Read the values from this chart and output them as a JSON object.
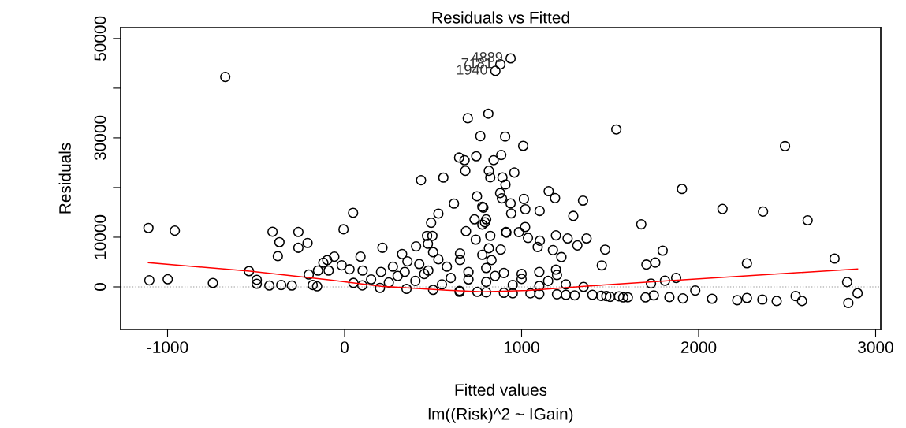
{
  "chart_data": {
    "type": "scatter",
    "title": "Residuals vs Fitted",
    "xlabel": "Fitted values",
    "ylabel": "Residuals",
    "annotations": [
      {
        "text": "4889",
        "x": 938,
        "y": 46010
      },
      {
        "text": "7181",
        "x": 880,
        "y": 44800
      },
      {
        "text": "1940",
        "x": 852,
        "y": 43490
      },
      "lm((Risk)^2 ~ IGain)"
    ],
    "xlim": [
      -1265,
      3029
    ],
    "ylim": [
      -8570,
      52200
    ],
    "xticks": [
      -1000,
      0,
      1000,
      2000,
      3000
    ],
    "yticks": [
      0,
      10000,
      {
        "value": 20000,
        "label": null
      },
      30000,
      {
        "value": 40000,
        "label": null
      },
      50000
    ],
    "grid": false,
    "legend": false,
    "marker": "circle",
    "ref_lines": [
      {
        "axis": "y",
        "value": 0,
        "label": null,
        "color": "#bbbbbb",
        "line_style": "dotted"
      }
    ],
    "series": [
      {
        "color": "#000000",
        "x": [
          -1108,
          -959,
          -674,
          -1103,
          -999,
          -744,
          -540,
          -407,
          -261,
          -368,
          -209,
          -261,
          -377,
          48,
          -6,
          214,
          432,
          558,
          696,
          812,
          767,
          907,
          647,
          744,
          678,
          885,
          842,
          682,
          815,
          823,
          892,
          909,
          879,
          889,
          748,
          778,
          618,
          530,
          489,
          734,
          800,
          778,
          686,
          466,
          496,
          741,
          823,
          471,
          404,
          325,
          500,
          530,
          355,
          422,
          815,
          882,
          912,
          652,
          90,
          -58,
          -98,
          -120,
          938,
          880,
          852,
          1535,
          1009,
          2488,
          959,
          1906,
          1153,
          1189,
          1347,
          1013,
          784,
          938,
          1021,
          1102,
          941,
          2135,
          2364,
          2616,
          1292,
          1676,
          793,
          1020,
          985,
          914,
          1036,
          1103,
          1091,
          1194,
          1260,
          1367,
          1315,
          1177,
          1225,
          1472,
          1797,
          1194,
          1453,
          1705,
          1755,
          2273,
          2768,
          1873,
          1810,
          1731,
          2839,
          2898,
          2846,
          2584,
          2548,
          2441,
          2360,
          2273,
          2218,
          2076,
          1981,
          1911,
          1835,
          1747,
          1700,
          1574,
          1479,
          -496,
          -425,
          -358,
          -298,
          -180,
          -155,
          -496,
          -202,
          -150,
          -90,
          -16,
          28,
          102,
          206,
          273,
          340,
          473,
          578,
          652,
          778,
          830,
          50,
          100,
          150,
          200,
          250,
          300,
          350,
          400,
          450,
          500,
          550,
          600,
          650,
          700,
          750,
          800,
          850,
          900,
          950,
          1000,
          1050,
          1100,
          1150,
          1200,
          1250,
          1300,
          1350,
          1400,
          1450,
          1500,
          1550,
          1600,
          650,
          800,
          950,
          1100,
          1250,
          700,
          800,
          900,
          1000,
          1100,
          1200
        ],
        "values": [
          11860,
          11320,
          42270,
          1320,
          1540,
          790,
          3170,
          11110,
          11060,
          9000,
          8840,
          7880,
          6190,
          14920,
          11590,
          7880,
          21480,
          22010,
          33970,
          34870,
          30370,
          30270,
          26030,
          26300,
          25500,
          26560,
          25510,
          23380,
          23380,
          22060,
          22060,
          20630,
          18890,
          17830,
          18250,
          16140,
          16770,
          14760,
          12910,
          13600,
          13600,
          12540,
          11220,
          10270,
          10270,
          9520,
          10270,
          8680,
          8150,
          6610,
          6980,
          5560,
          5130,
          4600,
          7780,
          7510,
          11060,
          6720,
          6080,
          6080,
          5400,
          4870,
          46010,
          44800,
          43490,
          31700,
          28400,
          28330,
          23020,
          19710,
          19270,
          17870,
          17370,
          17700,
          15970,
          16810,
          15630,
          15300,
          14790,
          15690,
          15170,
          13400,
          14290,
          12600,
          13000,
          12060,
          11030,
          10920,
          9860,
          9300,
          8020,
          10370,
          9750,
          9750,
          8350,
          7400,
          6000,
          7500,
          7290,
          3490,
          4320,
          4490,
          4890,
          4760,
          5710,
          1810,
          1240,
          680,
          970,
          -1270,
          -3240,
          -2840,
          -1840,
          -2840,
          -2540,
          -2220,
          -2670,
          -2380,
          -730,
          -2320,
          -2060,
          -1710,
          -2110,
          -2110,
          -1840,
          630,
          270,
          370,
          270,
          370,
          110,
          1430,
          2490,
          3290,
          3290,
          4340,
          3540,
          3290,
          3020,
          4080,
          3020,
          3290,
          4080,
          5400,
          6460,
          5400,
          800,
          300,
          1500,
          -200,
          900,
          2200,
          -400,
          1200,
          2600,
          -600,
          500,
          1800,
          -800,
          3000,
          -1000,
          1000,
          2200,
          -1200,
          400,
          1600,
          -1300,
          200,
          1200,
          -1500,
          500,
          -1700,
          0,
          -1600,
          -1800,
          -2000,
          -1900,
          -2100,
          -1000,
          -1100,
          -1300,
          -1400,
          -1600,
          1500,
          3800,
          2800,
          2600,
          3000,
          2400
        ]
      },
      {
        "type": "line",
        "color": "#ff0000",
        "marker": "none",
        "x": [
          -1108,
          -536,
          -90,
          206,
          578,
          780,
          1040,
          1354,
          1825,
          2898
        ],
        "values": [
          4870,
          3170,
          1430,
          110,
          -680,
          -1000,
          -710,
          130,
          1240,
          3600
        ]
      }
    ]
  }
}
